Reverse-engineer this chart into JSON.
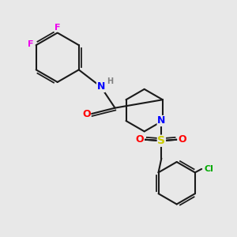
{
  "bg_color": "#e8e8e8",
  "bond_color": "#1a1a1a",
  "bond_width": 1.5,
  "atom_colors": {
    "F": "#ee00ee",
    "N": "#0000ff",
    "O": "#ff0000",
    "S": "#cccc00",
    "Cl": "#00aa00",
    "H": "#808080",
    "C": "#1a1a1a"
  },
  "font_size": 8,
  "figsize": [
    3.0,
    3.0
  ],
  "dpi": 100
}
